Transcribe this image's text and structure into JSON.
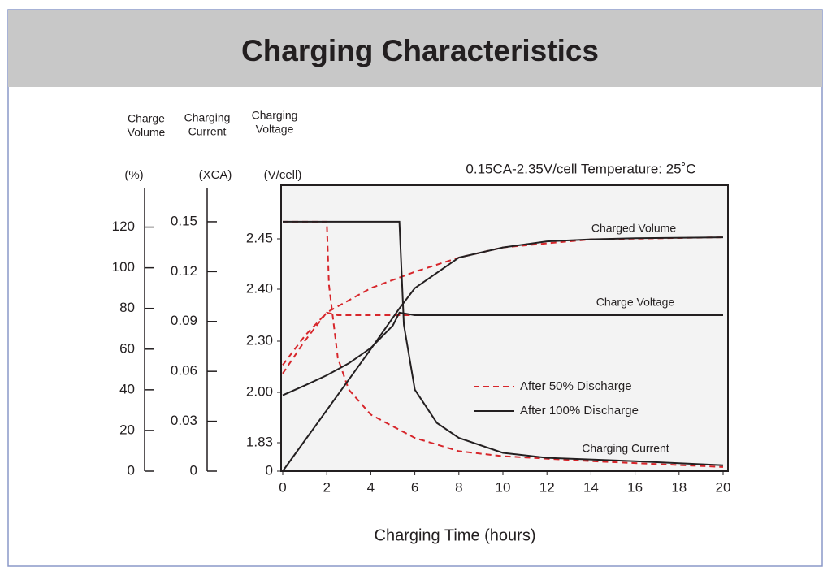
{
  "chart_data": {
    "type": "line",
    "title": "Charging Characteristics",
    "subtitle": "0.15CA-2.35V/cell   Temperature: 25˚C",
    "xlabel": "Charging Time (hours)",
    "xlim": [
      0,
      20
    ],
    "xticks": [
      0,
      2,
      4,
      6,
      8,
      10,
      12,
      14,
      16,
      18,
      20
    ],
    "axes": [
      {
        "label": [
          "Charge",
          "Volume"
        ],
        "unit": "(%)",
        "lim": [
          0,
          139
        ],
        "ticks": [
          0,
          20,
          40,
          60,
          80,
          100,
          120
        ]
      },
      {
        "label": [
          "Charging",
          "Current"
        ],
        "unit": "(XCA)",
        "lim": [
          0,
          0.17
        ],
        "ticks": [
          0,
          0.03,
          0.06,
          0.09,
          0.12,
          0.15
        ]
      },
      {
        "label": [
          "Charging",
          "Voltage"
        ],
        "unit": "(V/cell)",
        "lim": [
          0,
          2.5
        ],
        "scale": "piecewise",
        "ticks": [
          0,
          1.83,
          {
            "value": 2,
            "label": "2.00"
          },
          {
            "value": 2.3,
            "label": "2.30"
          },
          {
            "value": 2.4,
            "label": "2.40"
          },
          2.45
        ]
      }
    ],
    "legend": [
      {
        "name": "After 50% Discharge",
        "color": "#d7262b",
        "dash": true
      },
      {
        "name": "After 100%  Discharge",
        "color": "#231f20",
        "dash": false
      }
    ],
    "annotations": [
      "Charged Volume",
      "Charge Voltage",
      "Charging Current"
    ],
    "series": [
      {
        "group": 0,
        "axis": 0,
        "x": [
          0,
          1,
          2,
          4,
          6,
          8,
          10,
          14,
          20
        ],
        "values": [
          48,
          64,
          78,
          90,
          98,
          105,
          110,
          114,
          115
        ]
      },
      {
        "group": 0,
        "axis": 2,
        "x": [
          0,
          1,
          2,
          2.5,
          20
        ],
        "values": [
          2.16,
          2.31,
          2.355,
          2.35,
          2.35
        ]
      },
      {
        "group": 0,
        "axis": 1,
        "x": [
          0,
          2,
          2.1,
          2.5,
          3,
          4,
          6,
          8,
          10,
          14,
          20
        ],
        "values": [
          0.15,
          0.15,
          0.112,
          0.068,
          0.049,
          0.034,
          0.02,
          0.012,
          0.009,
          0.006,
          0.0025
        ]
      },
      {
        "group": 1,
        "axis": 0,
        "x": [
          0,
          2,
          4,
          5.3,
          6,
          8,
          10,
          12,
          14,
          16,
          20
        ],
        "values": [
          0,
          30,
          60,
          80,
          90,
          105,
          110,
          113,
          114,
          114.5,
          115
        ]
      },
      {
        "group": 1,
        "axis": 2,
        "x": [
          0,
          1,
          2,
          3,
          4,
          5,
          5.3,
          6,
          20
        ],
        "values": [
          1.99,
          2.04,
          2.1,
          2.17,
          2.26,
          2.33,
          2.355,
          2.35,
          2.35
        ]
      },
      {
        "group": 1,
        "axis": 1,
        "x": [
          0,
          5.3,
          5.5,
          6,
          7,
          8,
          10,
          12,
          16,
          20
        ],
        "values": [
          0.15,
          0.15,
          0.088,
          0.049,
          0.029,
          0.02,
          0.011,
          0.008,
          0.006,
          0.0035
        ]
      }
    ]
  }
}
